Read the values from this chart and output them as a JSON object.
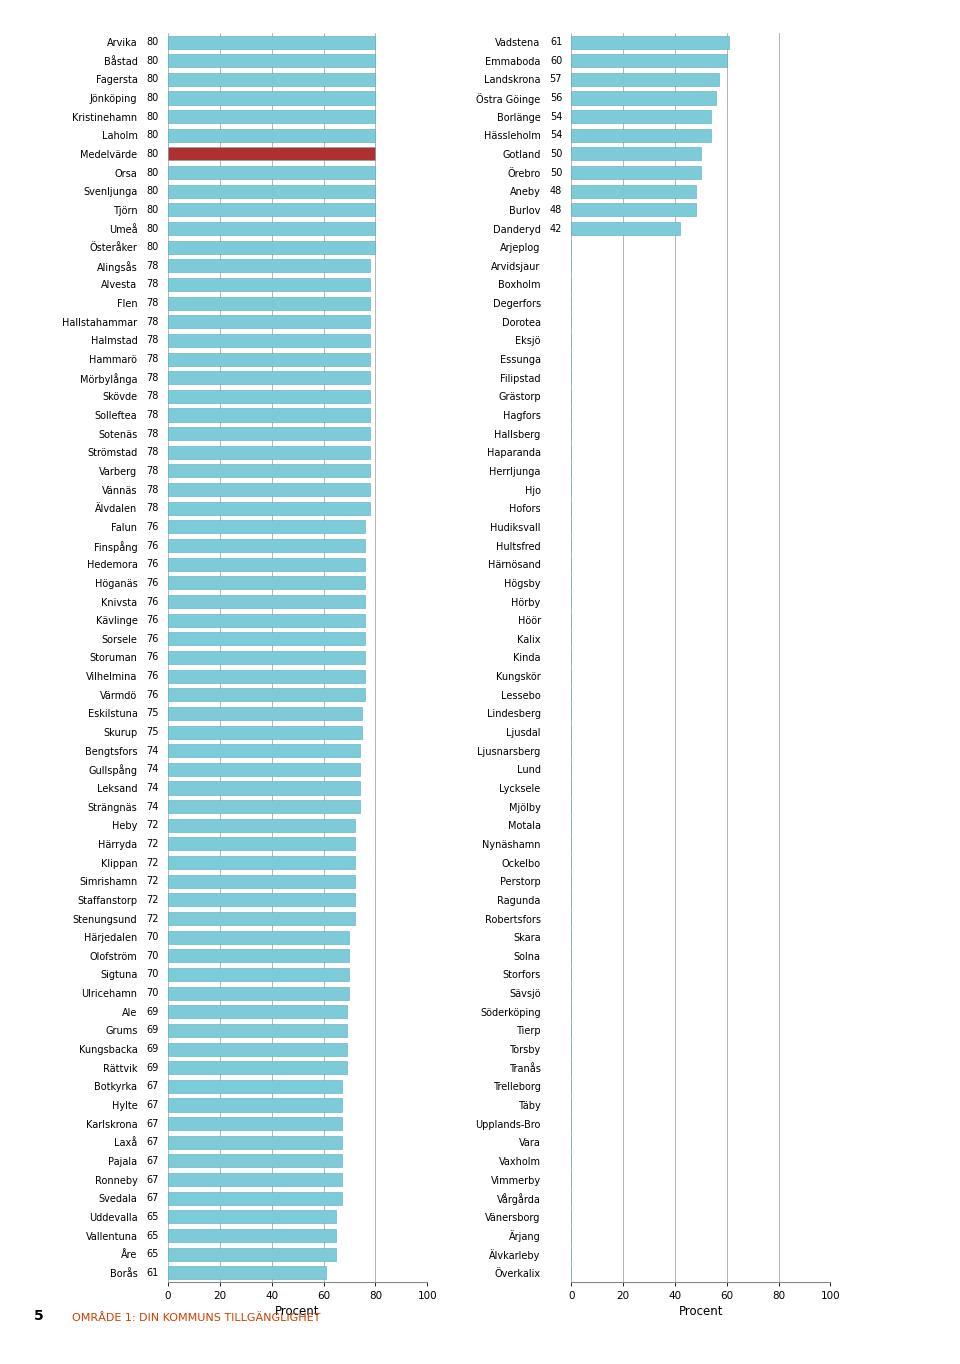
{
  "left_data": [
    {
      "name": "Arvika",
      "value": 80
    },
    {
      "name": "Båstad",
      "value": 80
    },
    {
      "name": "Fagersta",
      "value": 80
    },
    {
      "name": "Jönköping",
      "value": 80
    },
    {
      "name": "Kristinehamn",
      "value": 80
    },
    {
      "name": "Laholm",
      "value": 80
    },
    {
      "name": "Medelvärde",
      "value": 80
    },
    {
      "name": "Orsa",
      "value": 80
    },
    {
      "name": "Svenljunga",
      "value": 80
    },
    {
      "name": "Tjörn",
      "value": 80
    },
    {
      "name": "Umeå",
      "value": 80
    },
    {
      "name": "Österåker",
      "value": 80
    },
    {
      "name": "Alingsås",
      "value": 78
    },
    {
      "name": "Alvesta",
      "value": 78
    },
    {
      "name": "Flen",
      "value": 78
    },
    {
      "name": "Hallstahammar",
      "value": 78
    },
    {
      "name": "Halmstad",
      "value": 78
    },
    {
      "name": "Hammarö",
      "value": 78
    },
    {
      "name": "Mörbylånga",
      "value": 78
    },
    {
      "name": "Skövde",
      "value": 78
    },
    {
      "name": "Solleftea",
      "value": 78
    },
    {
      "name": "Sotenäs",
      "value": 78
    },
    {
      "name": "Strömstad",
      "value": 78
    },
    {
      "name": "Varberg",
      "value": 78
    },
    {
      "name": "Vännäs",
      "value": 78
    },
    {
      "name": "Älvdalen",
      "value": 78
    },
    {
      "name": "Falun",
      "value": 76
    },
    {
      "name": "Finspång",
      "value": 76
    },
    {
      "name": "Hedemora",
      "value": 76
    },
    {
      "name": "Höganäs",
      "value": 76
    },
    {
      "name": "Knivsta",
      "value": 76
    },
    {
      "name": "Kävlinge",
      "value": 76
    },
    {
      "name": "Sorsele",
      "value": 76
    },
    {
      "name": "Storuman",
      "value": 76
    },
    {
      "name": "Vilhelmina",
      "value": 76
    },
    {
      "name": "Värmdö",
      "value": 76
    },
    {
      "name": "Eskilstuna",
      "value": 75
    },
    {
      "name": "Skurup",
      "value": 75
    },
    {
      "name": "Bengtsfors",
      "value": 74
    },
    {
      "name": "Gullspång",
      "value": 74
    },
    {
      "name": "Leksand",
      "value": 74
    },
    {
      "name": "Strängnäs",
      "value": 74
    },
    {
      "name": "Heby",
      "value": 72
    },
    {
      "name": "Härryda",
      "value": 72
    },
    {
      "name": "Klippan",
      "value": 72
    },
    {
      "name": "Simrishamn",
      "value": 72
    },
    {
      "name": "Staffanstorp",
      "value": 72
    },
    {
      "name": "Stenungsund",
      "value": 72
    },
    {
      "name": "Härjedalen",
      "value": 70
    },
    {
      "name": "Olofström",
      "value": 70
    },
    {
      "name": "Sigtuna",
      "value": 70
    },
    {
      "name": "Ulricehamn",
      "value": 70
    },
    {
      "name": "Ale",
      "value": 69
    },
    {
      "name": "Grums",
      "value": 69
    },
    {
      "name": "Kungsbacka",
      "value": 69
    },
    {
      "name": "Rättvik",
      "value": 69
    },
    {
      "name": "Botkyrka",
      "value": 67
    },
    {
      "name": "Hylte",
      "value": 67
    },
    {
      "name": "Karlskrona",
      "value": 67
    },
    {
      "name": "Laxå",
      "value": 67
    },
    {
      "name": "Pajala",
      "value": 67
    },
    {
      "name": "Ronneby",
      "value": 67
    },
    {
      "name": "Svedala",
      "value": 67
    },
    {
      "name": "Uddevalla",
      "value": 65
    },
    {
      "name": "Vallentuna",
      "value": 65
    },
    {
      "name": "Åre",
      "value": 65
    },
    {
      "name": "Borås",
      "value": 61
    }
  ],
  "right_data": [
    {
      "name": "Vadstena",
      "value": 61
    },
    {
      "name": "Emmaboda",
      "value": 60
    },
    {
      "name": "Landskrona",
      "value": 57
    },
    {
      "name": "Östra Göinge",
      "value": 56
    },
    {
      "name": "Borlänge",
      "value": 54
    },
    {
      "name": "Hässleholm",
      "value": 54
    },
    {
      "name": "Gotland",
      "value": 50
    },
    {
      "name": "Örebro",
      "value": 50
    },
    {
      "name": "Aneby",
      "value": 48
    },
    {
      "name": "Burlov",
      "value": 48
    },
    {
      "name": "Danderyd",
      "value": 42
    },
    {
      "name": "Arjeplog",
      "value": 0
    },
    {
      "name": "Arvidsjaur",
      "value": 0
    },
    {
      "name": "Boxholm",
      "value": 0
    },
    {
      "name": "Degerfors",
      "value": 0
    },
    {
      "name": "Dorotea",
      "value": 0
    },
    {
      "name": "Eksjö",
      "value": 0
    },
    {
      "name": "Essunga",
      "value": 0
    },
    {
      "name": "Filipstad",
      "value": 0
    },
    {
      "name": "Grästorp",
      "value": 0
    },
    {
      "name": "Hagfors",
      "value": 0
    },
    {
      "name": "Hallsberg",
      "value": 0
    },
    {
      "name": "Haparanda",
      "value": 0
    },
    {
      "name": "Herrljunga",
      "value": 0
    },
    {
      "name": "Hjo",
      "value": 0
    },
    {
      "name": "Hofors",
      "value": 0
    },
    {
      "name": "Hudiksvall",
      "value": 0
    },
    {
      "name": "Hultsfred",
      "value": 0
    },
    {
      "name": "Härnösand",
      "value": 0
    },
    {
      "name": "Högsby",
      "value": 0
    },
    {
      "name": "Hörby",
      "value": 0
    },
    {
      "name": "Höör",
      "value": 0
    },
    {
      "name": "Kalix",
      "value": 0
    },
    {
      "name": "Kinda",
      "value": 0
    },
    {
      "name": "Kungskör",
      "value": 0
    },
    {
      "name": "Lessebo",
      "value": 0
    },
    {
      "name": "Lindesberg",
      "value": 0
    },
    {
      "name": "Ljusdal",
      "value": 0
    },
    {
      "name": "Ljusnarsberg",
      "value": 0
    },
    {
      "name": "Lund",
      "value": 0
    },
    {
      "name": "Lycksele",
      "value": 0
    },
    {
      "name": "Mjölby",
      "value": 0
    },
    {
      "name": "Motala",
      "value": 0
    },
    {
      "name": "Nynäshamn",
      "value": 0
    },
    {
      "name": "Ockelbo",
      "value": 0
    },
    {
      "name": "Perstorp",
      "value": 0
    },
    {
      "name": "Ragunda",
      "value": 0
    },
    {
      "name": "Robertsfors",
      "value": 0
    },
    {
      "name": "Skara",
      "value": 0
    },
    {
      "name": "Solna",
      "value": 0
    },
    {
      "name": "Storfors",
      "value": 0
    },
    {
      "name": "Sävsjö",
      "value": 0
    },
    {
      "name": "Söderköping",
      "value": 0
    },
    {
      "name": "Tierp",
      "value": 0
    },
    {
      "name": "Torsby",
      "value": 0
    },
    {
      "name": "Tranås",
      "value": 0
    },
    {
      "name": "Trelleborg",
      "value": 0
    },
    {
      "name": "Täby",
      "value": 0
    },
    {
      "name": "Upplands-Bro",
      "value": 0
    },
    {
      "name": "Vara",
      "value": 0
    },
    {
      "name": "Vaxholm",
      "value": 0
    },
    {
      "name": "Vimmerby",
      "value": 0
    },
    {
      "name": "Vårgårda",
      "value": 0
    },
    {
      "name": "Vänersborg",
      "value": 0
    },
    {
      "name": "Ärjang",
      "value": 0
    },
    {
      "name": "Älvkarleby",
      "value": 0
    },
    {
      "name": "Överkalix",
      "value": 0
    }
  ],
  "bar_color": "#7DCAD8",
  "highlight_color": "#B03030",
  "bar_edge_color": "#5BAABB",
  "grid_color": "#AAAAAA",
  "background_color": "#FFFFFF",
  "xlabel": "Procent",
  "xlim": [
    0,
    100
  ],
  "xticks": [
    0,
    20,
    40,
    60,
    80,
    100
  ],
  "footer_number": "5",
  "footer_label": "OMRÅDE 1: DIN KOMMUNS TILLGÄNGLIGHET",
  "medelvarde_name": "Medelvärde"
}
